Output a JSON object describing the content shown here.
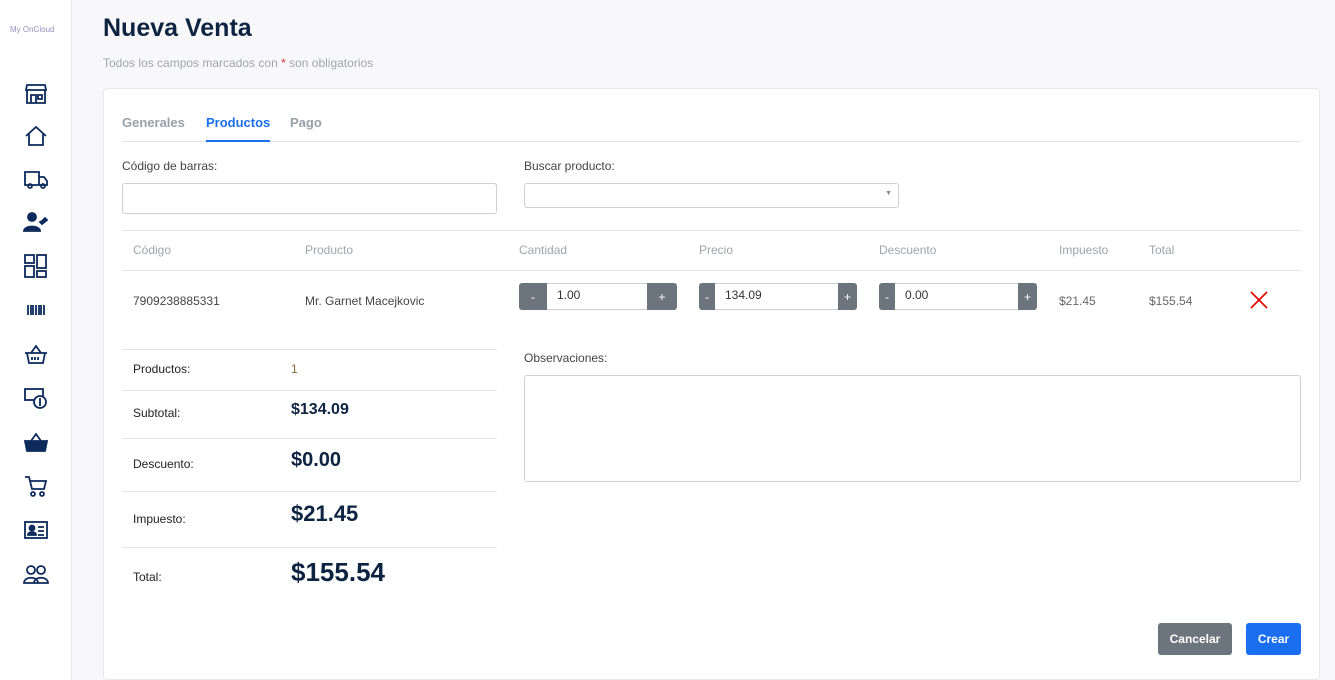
{
  "sidebar": {
    "logo": "My OnCloud",
    "icons": [
      "store-icon",
      "home-icon",
      "truck-icon",
      "user-heart-icon",
      "dashboard-icon",
      "barcode-icon",
      "basket-outline-icon",
      "money-icon",
      "basket-filled-icon",
      "cart-icon",
      "id-card-icon",
      "users-icon"
    ]
  },
  "header": {
    "title": "Nueva Venta",
    "subtitle_pre": "Todos los campos marcados con ",
    "required_mark": "*",
    "subtitle_post": " son obligatorios"
  },
  "tabs": [
    {
      "label": "Generales"
    },
    {
      "label": "Productos",
      "active": true
    },
    {
      "label": "Pago"
    }
  ],
  "form": {
    "barcode_label": "Código de barras:",
    "barcode_value": "",
    "search_label": "Buscar producto:",
    "search_value": ""
  },
  "table": {
    "headers": [
      "Código",
      "Producto",
      "Cantidad",
      "Precio",
      "Descuento",
      "Impuesto",
      "Total"
    ],
    "rows": [
      {
        "codigo": "7909238885331",
        "producto": "Mr. Garnet Macejkovic",
        "cantidad": "1.00",
        "precio": "134.09",
        "descuento": "0.00",
        "impuesto": "$21.45",
        "total": "$155.54"
      }
    ]
  },
  "stepper": {
    "minus": "-",
    "plus": "+"
  },
  "summary": {
    "productos_label": "Productos:",
    "productos": "1",
    "subtotal_label": "Subtotal:",
    "subtotal": "$134.09",
    "descuento_label": "Descuento:",
    "descuento": "$0.00",
    "impuesto_label": "Impuesto:",
    "impuesto": "$21.45",
    "total_label": "Total:",
    "total": "$155.54"
  },
  "observaciones_label": "Observaciones:",
  "buttons": {
    "cancel": "Cancelar",
    "create": "Crear"
  },
  "colors": {
    "primary": "#1a6ff0",
    "secondary": "#6c757d",
    "navy": "#0d2342",
    "danger": "#e00000"
  }
}
